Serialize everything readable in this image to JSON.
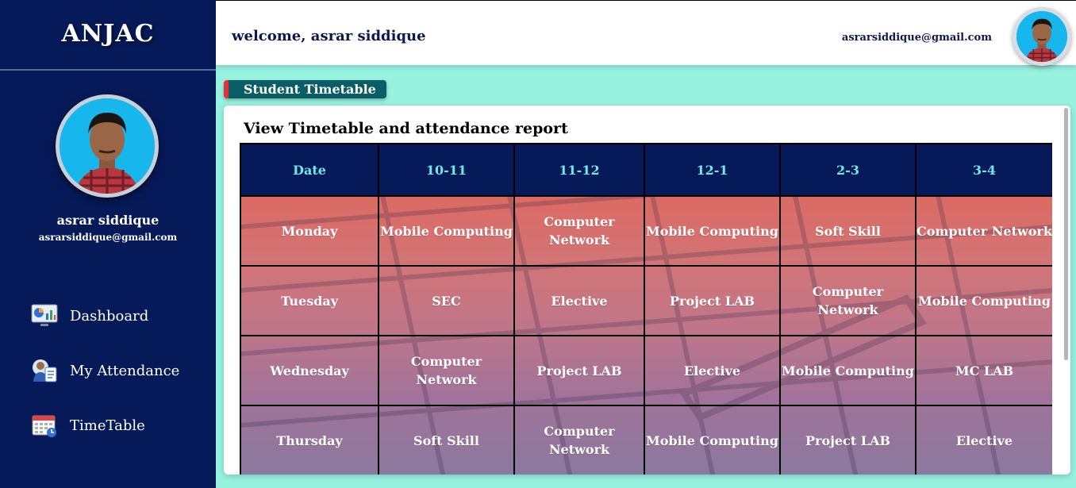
{
  "sidebar": {
    "brand": "ANJAC",
    "user_name": "asrar siddique",
    "user_email": "asrarsiddique@gmail.com",
    "nav": [
      {
        "label": "Dashboard",
        "icon": "dashboard-icon"
      },
      {
        "label": "My Attendance",
        "icon": "attendance-icon"
      },
      {
        "label": "TimeTable",
        "icon": "calendar-icon"
      }
    ]
  },
  "header": {
    "welcome": "welcome, asrar siddique",
    "email": "asrarsiddique@gmail.com"
  },
  "section_tag": "Student Timetable",
  "card": {
    "title": "View Timetable and attendance report"
  },
  "timetable": {
    "headers": [
      "Date",
      "10-11",
      "11-12",
      "12-1",
      "2-3",
      "3-4"
    ],
    "rows": [
      [
        "Monday",
        "Mobile Computing",
        "Computer Network",
        "Mobile Computing",
        "Soft Skill",
        "Computer Network"
      ],
      [
        "Tuesday",
        "SEC",
        "Elective",
        "Project LAB",
        "Computer Network",
        "Mobile Computing"
      ],
      [
        "Wednesday",
        "Computer Network",
        "Project LAB",
        "Elective",
        "Mobile Computing",
        "MC LAB"
      ],
      [
        "Thursday",
        "Soft Skill",
        "Computer Network",
        "Mobile Computing",
        "Project LAB",
        "Elective"
      ]
    ]
  },
  "colors": {
    "sidebar_bg": "#061a59",
    "page_bg": "#97f2df",
    "header_text": "#0a1a4e",
    "table_header_bg": "#061a59",
    "table_header_text": "#6fe8e8",
    "tag_bg": "#0a5d66",
    "tag_accent": "#e0303a"
  }
}
